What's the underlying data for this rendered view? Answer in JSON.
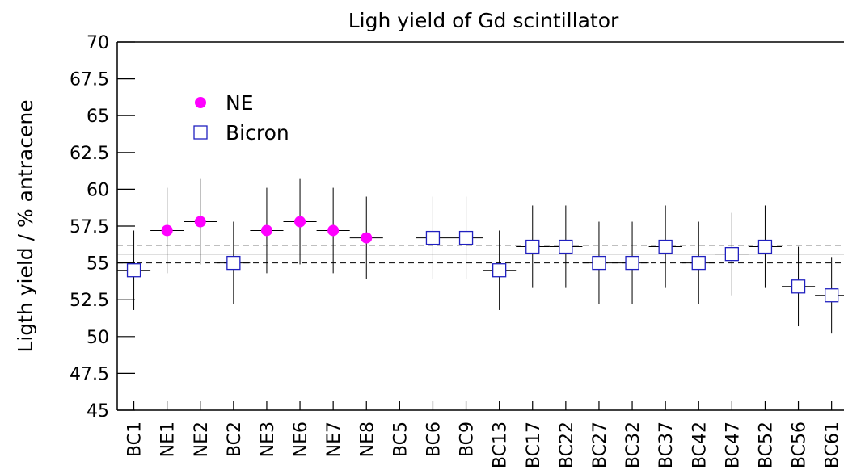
{
  "chart_data": {
    "type": "errorbar",
    "title": "Ligh yield of Gd scintillator",
    "y_label": "Ligth yield / % antracene",
    "categories": [
      "BC1",
      "NE1",
      "NE2",
      "BC2",
      "NE3",
      "NE6",
      "NE7",
      "NE8",
      "BC5",
      "BC6",
      "BC9",
      "BC13",
      "BC17",
      "BC22",
      "BC27",
      "BC32",
      "BC37",
      "BC42",
      "BC47",
      "BC52",
      "BC56",
      "BC61"
    ],
    "series": [
      {
        "name": "NE",
        "color": "#ff00ff",
        "marker": "circle",
        "values": [
          null,
          57.2,
          57.8,
          null,
          57.2,
          57.8,
          57.2,
          56.7,
          null,
          null,
          null,
          null,
          null,
          null,
          null,
          null,
          null,
          null,
          null,
          null,
          null,
          null
        ],
        "errors": [
          null,
          2.9,
          2.9,
          null,
          2.9,
          2.9,
          2.9,
          2.8,
          null,
          null,
          null,
          null,
          null,
          null,
          null,
          null,
          null,
          null,
          null,
          null,
          null,
          null
        ]
      },
      {
        "name": "Bicron",
        "color": "#2020c0",
        "marker": "open-square",
        "values": [
          54.5,
          null,
          null,
          55.0,
          null,
          null,
          null,
          null,
          null,
          56.7,
          56.7,
          54.5,
          56.1,
          56.1,
          55.0,
          55.0,
          56.1,
          55.0,
          55.6,
          56.1,
          53.4,
          52.8
        ],
        "errors": [
          2.7,
          null,
          null,
          2.8,
          null,
          null,
          null,
          null,
          null,
          2.8,
          2.8,
          2.7,
          2.8,
          2.8,
          2.8,
          2.8,
          2.8,
          2.8,
          2.8,
          2.8,
          2.7,
          2.6
        ]
      }
    ],
    "hlines": [
      {
        "value": 55.6,
        "style": "solid"
      },
      {
        "value": 56.2,
        "style": "dashed"
      },
      {
        "value": 55.0,
        "style": "dashed"
      }
    ],
    "ylim": [
      45,
      70
    ],
    "yticks": [
      45,
      47.5,
      50,
      52.5,
      55,
      57.5,
      60,
      62.5,
      65,
      67.5,
      70
    ],
    "legend": "upper left"
  }
}
